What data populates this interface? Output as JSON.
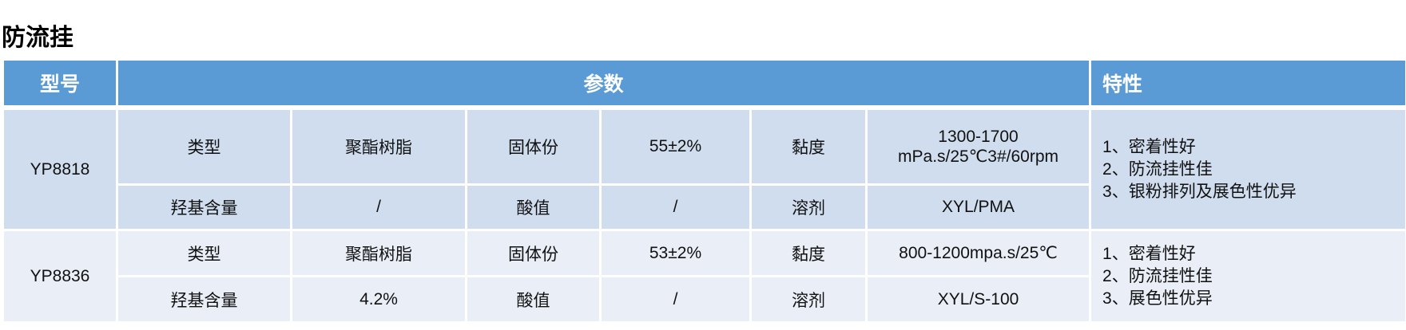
{
  "title": "防流挂",
  "headers": {
    "model": "型号",
    "params": "参数",
    "features": "特性"
  },
  "rows": [
    {
      "model": "YP8818",
      "type_label": "类型",
      "type": "聚酯树脂",
      "solids_label": "固体份",
      "solids": "55±2%",
      "viscosity_label": "黏度",
      "viscosity_1": "1300-1700",
      "viscosity_2": "mPa.s/25℃3#/60rpm",
      "hydroxyl_label": "羟基含量",
      "hydroxyl": "/",
      "acid_label": "酸值",
      "acid": "/",
      "solvent_label": "溶剂",
      "solvent": "XYL/PMA",
      "features": [
        "1、密着性好",
        "2、防流挂性佳",
        "3、银粉排列及展色性优异"
      ]
    },
    {
      "model": "YP8836",
      "type_label": "类型",
      "type": "聚酯树脂",
      "solids_label": "固体份",
      "solids": "53±2%",
      "viscosity_label": "黏度",
      "viscosity_1": "800-1200mpa.s/25℃",
      "viscosity_2": "",
      "hydroxyl_label": "羟基含量",
      "hydroxyl": "4.2%",
      "acid_label": "酸值",
      "acid": "/",
      "solvent_label": "溶剂",
      "solvent": "XYL/S-100",
      "features": [
        "1、密着性好",
        "2、防流挂性佳",
        "3、展色性优异"
      ]
    }
  ],
  "colors": {
    "header": "#5b9bd5",
    "group1": "#d0ddef",
    "group2": "#e9eef7"
  }
}
